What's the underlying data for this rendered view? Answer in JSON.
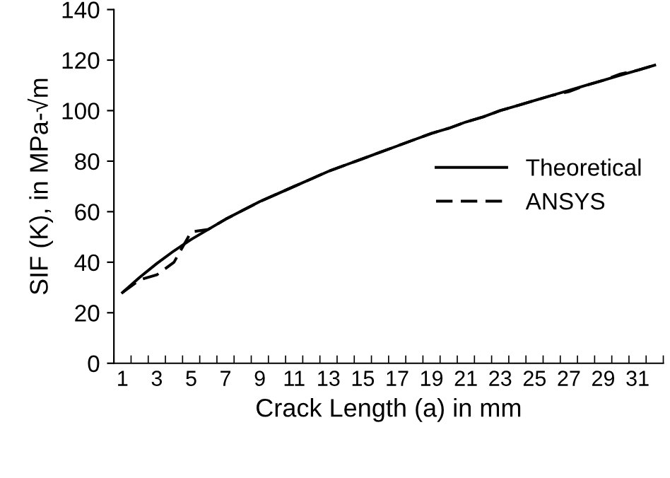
{
  "chart_data": {
    "type": "line",
    "xlabel": "Crack Length (a) in mm",
    "ylabel": "SIF (K), in MPa-√m",
    "categories": [
      "1",
      null,
      "3",
      null,
      "5",
      null,
      "7",
      null,
      "9",
      null,
      "11",
      null,
      "13",
      null,
      "15",
      null,
      "17",
      null,
      "19",
      null,
      "21",
      null,
      "23",
      null,
      "25",
      null,
      "27",
      null,
      "29",
      null,
      "31",
      null
    ],
    "series": [
      {
        "name": "Theoretical",
        "color": "#000000",
        "line_style": "solid",
        "values": [
          28,
          34,
          39.5,
          44.5,
          49,
          53,
          57,
          60.5,
          64,
          67,
          70,
          73,
          76,
          78.5,
          81,
          83.5,
          86,
          88.5,
          91,
          93,
          95.5,
          97.5,
          100,
          102,
          104,
          106,
          108,
          110,
          112,
          114,
          116,
          118
        ]
      },
      {
        "name": "ANSYS",
        "color": "#000000",
        "line_style": "dashed",
        "values": [
          28,
          33,
          35,
          40,
          52,
          53,
          57,
          60.5,
          64,
          67,
          70,
          73,
          76,
          78.5,
          81,
          83.5,
          86,
          88.5,
          91,
          93,
          95.5,
          97.5,
          100,
          102,
          104,
          106,
          107.5,
          110,
          112,
          114.5,
          116,
          118
        ]
      }
    ],
    "ylim": [
      0,
      140
    ],
    "yticks": [
      0,
      20,
      40,
      60,
      80,
      100,
      120,
      140
    ],
    "grid": false,
    "legend": "right",
    "marker": "none"
  }
}
